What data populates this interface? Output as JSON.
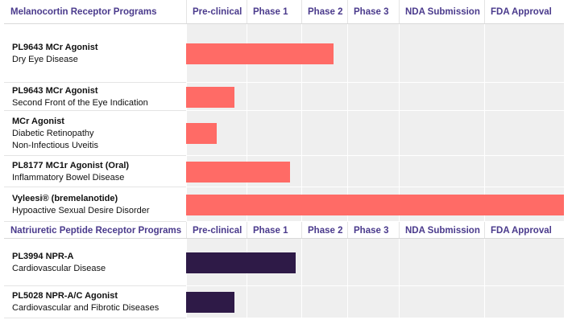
{
  "sections": [
    {
      "title": "Melanocortin Receptor Programs",
      "stages": [
        "Pre-clinical",
        "Phase 1",
        "Phase 2",
        "Phase 3",
        "NDA Submission",
        "FDA Approval"
      ],
      "color": "#ff6b66",
      "programs": [
        {
          "name": "PL9643 MCr Agonist",
          "lines": [
            "Dry Eye Disease"
          ],
          "progress": 2.7
        },
        {
          "name": "PL9643 MCr Agonist",
          "lines": [
            "Second Front of the Eye Indication"
          ],
          "progress": 0.8
        },
        {
          "name": "MCr Agonist",
          "lines": [
            "Diabetic Retinopathy",
            "Non-Infectious Uveitis"
          ],
          "progress": 0.5
        },
        {
          "name": "PL8177 MC1r Agonist (Oral)",
          "lines": [
            "Inflammatory Bowel Disease"
          ],
          "progress": 1.8
        },
        {
          "name": "Vyleesi® (bremelanotide)",
          "lines": [
            "Hypoactive Sexual Desire Disorder"
          ],
          "progress": 6
        }
      ]
    },
    {
      "title": "Natriuretic Peptide Receptor Programs",
      "stages": [
        "Pre-clinical",
        "Phase 1",
        "Phase 2",
        "Phase 3",
        "NDA Submission",
        "FDA Approval"
      ],
      "color": "#2e1a47",
      "programs": [
        {
          "name": "PL3994 NPR-A",
          "lines": [
            "Cardiovascular Disease"
          ],
          "progress": 1.9
        },
        {
          "name": "PL5028 NPR-A/C Agonist",
          "lines": [
            "Cardiovascular and Fibrotic Diseases"
          ],
          "progress": 0.8
        }
      ]
    }
  ]
}
